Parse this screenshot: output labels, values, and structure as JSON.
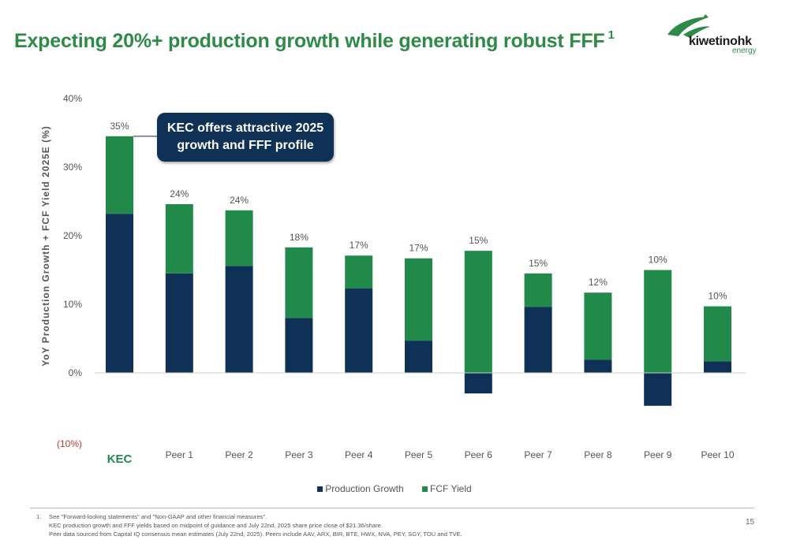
{
  "slide": {
    "title": "Expecting 20%+ production growth while generating robust FFF",
    "title_sup": "1",
    "logo": {
      "name": "kiwetinohk",
      "sub": "energy"
    },
    "callout": {
      "line1": "KEC offers attractive 2025",
      "line2": "growth and FFF profile"
    },
    "footnote": {
      "number": "1.",
      "lines": [
        "See \"Forward-looking statements\" and \"Non-GAAP and other financial measures\".",
        "KEC production growth and FFF yields based on midpoint of guidance and July 22nd, 2025 share price close of $21.36/share.",
        "Peer data sourced from Capital IQ consensus mean estimates (July 22nd, 2025). Peers include AAV, ARX, BIR, BTE, HWX, NVA, PEY, SGY, TOU and TVE."
      ]
    },
    "page_number": "15"
  },
  "chart_data": {
    "type": "bar",
    "stacked": true,
    "ylabel": "YoY Production Growth + FCF Yield 2025E (%)",
    "ylim": [
      -10,
      40
    ],
    "ytick_labels": [
      "40%",
      "30%",
      "20%",
      "10%",
      "0%",
      "(10%)"
    ],
    "categories": [
      "KEC",
      "Peer 1",
      "Peer 2",
      "Peer 3",
      "Peer 4",
      "Peer 5",
      "Peer 6",
      "Peer 7",
      "Peer 8",
      "Peer 9",
      "Peer 10"
    ],
    "series": [
      {
        "name": "Production Growth",
        "color": "#0e3155",
        "values": [
          23.2,
          14.5,
          15.6,
          8.0,
          12.3,
          4.7,
          -3.0,
          9.6,
          1.9,
          -4.8,
          1.7
        ]
      },
      {
        "name": "FCF Yield",
        "color": "#218a4b",
        "values": [
          11.3,
          10.1,
          8.1,
          10.3,
          4.8,
          12.0,
          17.8,
          4.9,
          9.8,
          15.0,
          8.0
        ]
      }
    ],
    "totals_labels": [
      "35%",
      "24%",
      "24%",
      "18%",
      "17%",
      "17%",
      "15%",
      "15%",
      "12%",
      "10%",
      "10%"
    ],
    "highlight_category": "KEC",
    "highlight_color": "#218a4b",
    "legend_position": "bottom"
  }
}
